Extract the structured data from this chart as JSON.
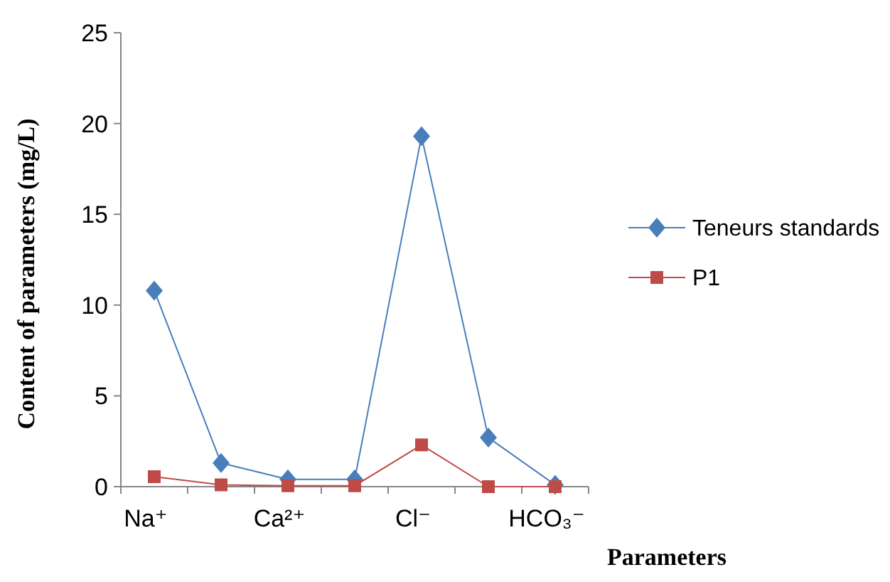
{
  "chart_data": {
    "type": "line",
    "xlabel": "Parameters",
    "ylabel": "Content of parameters (mg/L)",
    "categories": [
      "Na⁺",
      null,
      "Ca²⁺",
      null,
      "Cl⁻",
      null,
      "HCO₃⁻"
    ],
    "series": [
      {
        "name": "Teneurs standards",
        "color": "#4a7ebb",
        "marker": "diamond",
        "values": [
          10.8,
          1.3,
          0.4,
          0.4,
          19.3,
          2.7,
          0.1
        ]
      },
      {
        "name": "P1",
        "color": "#be4b48",
        "marker": "square",
        "values": [
          0.55,
          0.1,
          0.05,
          0.05,
          2.3,
          0,
          0
        ]
      }
    ],
    "ylim": [
      0,
      25
    ],
    "yticks": [
      0,
      5,
      10,
      15,
      20,
      25
    ],
    "grid": false,
    "legend": "right",
    "line_style": "solid"
  }
}
